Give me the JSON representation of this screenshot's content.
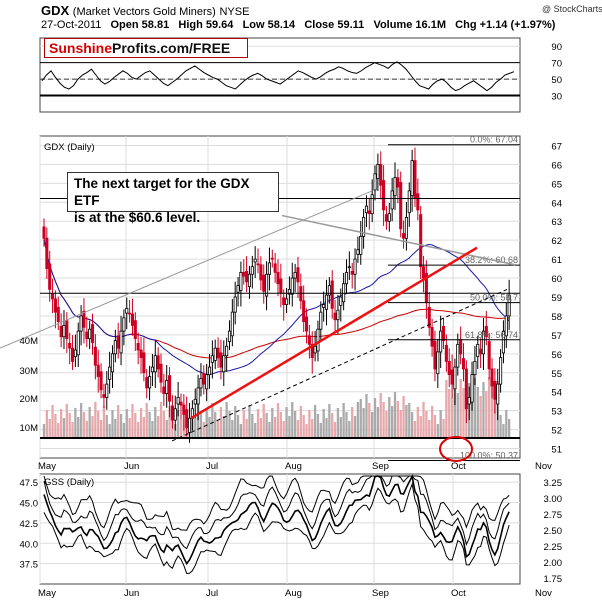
{
  "header": {
    "ticker": "GDX",
    "name": "(Market Vectors Gold Miners)",
    "exchange": "NYSE",
    "date": "27-Oct-2011",
    "open": "Open 58.81",
    "high": "High 59.64",
    "low": "Low 58.14",
    "close": "Close 59.11",
    "volume": "Volume 16.1M",
    "change": "Chg +1.14 (+1.97%)",
    "copyright": "@ StockCharts.com"
  },
  "brand": {
    "part1": "Sunshine",
    "part2": "Profits.com/FREE"
  },
  "annotation": {
    "text": "The next target for the GDX ETF\nis at the $60.6 level."
  },
  "colors": {
    "up": "#000000",
    "down": "#cc0022",
    "ma_short": "#1a1aaa",
    "ma_long": "#cc0000",
    "trend_red": "#ee1111",
    "volume_up": "#aaaaaa",
    "volume_down": "#e7a7ab",
    "grid": "#dddddd",
    "circle": "#dd0000"
  },
  "chart_data": [
    {
      "type": "line",
      "title": "RSI panel",
      "y_ticks": [
        "90",
        "70",
        "50",
        "30"
      ],
      "ylim": [
        10,
        100
      ],
      "reference_lines": [
        70,
        50,
        30
      ],
      "values": [
        48,
        55,
        60,
        52,
        45,
        40,
        38,
        42,
        50,
        55,
        58,
        62,
        55,
        48,
        44,
        47,
        52,
        56,
        60,
        57,
        52,
        50,
        54,
        58,
        60,
        55,
        50,
        45,
        42,
        46,
        50,
        55,
        60,
        63,
        66,
        62,
        58,
        55,
        52,
        50,
        46,
        42,
        40,
        38,
        43,
        48,
        52,
        55,
        57,
        54,
        50,
        48,
        46,
        44,
        48,
        52,
        56,
        60,
        58,
        55,
        52,
        50,
        53,
        57,
        60,
        62,
        65,
        63,
        60,
        58,
        57,
        60,
        64,
        67,
        70,
        68,
        66,
        63,
        68,
        71,
        67,
        62,
        55,
        48,
        42,
        40,
        38,
        44,
        48,
        50,
        46,
        40,
        36,
        38,
        42,
        45,
        48,
        44,
        40,
        36,
        40,
        46,
        50,
        55,
        57,
        59
      ]
    },
    {
      "type": "candlestick",
      "title": "GDX (Daily)",
      "y_ticks": [
        "67",
        "66",
        "65",
        "64",
        "63",
        "62",
        "61",
        "60",
        "59",
        "58",
        "57",
        "56",
        "55",
        "54",
        "53",
        "52",
        "51"
      ],
      "ylim": [
        50.5,
        67.5
      ],
      "x_labels": [
        "May",
        "Jun",
        "Jul",
        "Aug",
        "Sep",
        "Oct",
        "Nov"
      ],
      "volume_ticks": [
        "40M",
        "30M",
        "20M",
        "10M"
      ],
      "fib_levels": [
        {
          "label": "0.0%: 67.04",
          "value": 67.04
        },
        {
          "label": "38.2%: 60.68",
          "value": 60.68
        },
        {
          "label": "50.0%: 58.7",
          "value": 58.7
        },
        {
          "label": "61.8%: 56.74",
          "value": 56.74
        },
        {
          "label": "100.0%: 50.37",
          "value": 50.37
        }
      ],
      "horizontal_lines": [
        64.2,
        59.2
      ],
      "close": [
        62.1,
        60.5,
        59.4,
        58.9,
        58.2,
        57.7,
        56.9,
        57.5,
        56.8,
        56.3,
        55.6,
        56.2,
        57.2,
        58.0,
        57.4,
        56.8,
        57.3,
        56.6,
        55.4,
        54.8,
        54.1,
        53.7,
        54.4,
        55.3,
        56.0,
        56.7,
        56.3,
        57.2,
        57.9,
        58.4,
        58.1,
        57.5,
        56.8,
        56.2,
        55.8,
        55.0,
        54.2,
        54.8,
        55.3,
        55.9,
        55.2,
        54.5,
        53.9,
        54.6,
        53.5,
        52.5,
        53.1,
        53.7,
        53.3,
        52.8,
        52.1,
        52.6,
        53.1,
        53.6,
        54.2,
        54.7,
        54.4,
        54.9,
        55.3,
        55.9,
        56.3,
        55.8,
        55.3,
        55.9,
        56.4,
        57.2,
        58.2,
        59.0,
        59.6,
        60.3,
        60.1,
        59.8,
        60.2,
        60.6,
        61.0,
        60.7,
        59.9,
        59.3,
        60.2,
        60.8,
        61.0,
        60.3,
        59.7,
        59.2,
        58.6,
        58.9,
        59.4,
        60.0,
        60.3,
        59.8,
        58.8,
        57.7,
        57.2,
        56.5,
        55.8,
        56.4,
        57.3,
        58.2,
        58.6,
        59.1,
        59.6,
        58.4,
        57.8,
        58.3,
        59.0,
        59.7,
        60.3,
        60.6,
        60.2,
        61.0,
        61.5,
        62.2,
        63.2,
        63.8,
        63.4,
        64.4,
        65.5,
        66.0,
        64.9,
        63.6,
        63.0,
        63.4,
        64.6,
        65.3,
        64.8,
        62.6,
        62.1,
        63.2,
        64.6,
        66.2,
        64.2,
        63.6,
        60.6,
        60.0,
        58.7,
        57.4,
        56.4,
        55.2,
        56.1,
        57.2,
        56.7,
        55.6,
        54.9,
        54.4,
        55.3,
        56.5,
        56.0,
        55.2,
        53.1,
        53.7,
        54.9,
        55.6,
        56.5,
        56.0,
        57.2,
        56.9,
        55.2,
        54.3,
        53.6,
        54.4,
        55.8,
        57.2,
        58.0,
        59.1
      ]
    },
    {
      "type": "line",
      "title": "GSS (Daily)",
      "y_ticks_left": [
        "47.5",
        "45.0",
        "42.5",
        "40.0",
        "37.5"
      ],
      "y_ticks_right": [
        "3.25",
        "3.00",
        "2.75",
        "2.50",
        "2.25",
        "2.00",
        "1.75"
      ],
      "x_labels": [
        "May",
        "Jun",
        "Jul",
        "Aug",
        "Sep",
        "Oct",
        "Nov"
      ],
      "ylim": [
        35,
        48.5
      ]
    }
  ]
}
